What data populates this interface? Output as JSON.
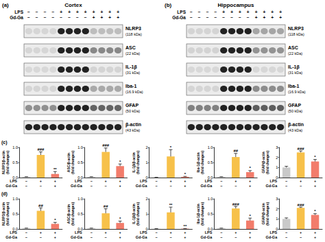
{
  "blots": [
    {
      "label": "(a)",
      "title": "Cortex",
      "treatments": [
        {
          "name": "LPS",
          "signs": [
            "−",
            "−",
            "−",
            "−",
            "+",
            "+",
            "+",
            "+",
            "+",
            "+",
            "+",
            "+"
          ]
        },
        {
          "name": "Gd-Ga",
          "signs": [
            "−",
            "−",
            "−",
            "−",
            "−",
            "−",
            "−",
            "−",
            "+",
            "+",
            "+",
            "+"
          ]
        }
      ],
      "proteins": [
        {
          "name": "NLRP3",
          "size": "(118 kDa)"
        },
        {
          "name": "ASC",
          "size": "(22 kDa)"
        },
        {
          "name": "IL-1β",
          "size": "(31 kDa)"
        },
        {
          "name": "Iba-1",
          "size": "(16.9 kDa)"
        },
        {
          "name": "GFAP",
          "size": "(50 kDa)"
        },
        {
          "name": "β-actin",
          "size": "(43 kDa)"
        }
      ]
    },
    {
      "label": "(b)",
      "title": "Hippocampus",
      "treatments": [
        {
          "name": "LPS",
          "signs": [
            "−",
            "−",
            "−",
            "−",
            "+",
            "+",
            "+",
            "+",
            "+",
            "+",
            "+",
            "+"
          ]
        },
        {
          "name": "Gd-Ga",
          "signs": [
            "−",
            "−",
            "−",
            "−",
            "−",
            "−",
            "−",
            "−",
            "+",
            "+",
            "+",
            "+"
          ]
        }
      ],
      "proteins": [
        {
          "name": "NLRP3",
          "size": "(118 kDa)"
        },
        {
          "name": "ASC",
          "size": "(22 kDa)"
        },
        {
          "name": "IL-1β",
          "size": "(31 kDa)"
        },
        {
          "name": "Iba-1",
          "size": "(16.9 kDa)"
        },
        {
          "name": "GFAP",
          "size": "(50 kDa)"
        },
        {
          "name": "β-actin",
          "size": "(43 kDa)"
        }
      ]
    }
  ],
  "chart_panel_labels": [
    "(c)",
    "(d)"
  ],
  "chart_data": [
    {
      "type": "bar",
      "y_label": "NLRP3/β-actin (fold changes)",
      "categories": [
        "−\n−",
        "+\n−",
        "+\n+"
      ],
      "x_row_labels": [
        "LPS",
        "Gd-Ga"
      ],
      "values": [
        0.02,
        0.75,
        0.12
      ],
      "errors": [
        0.01,
        0.1,
        0.08
      ],
      "significance": [
        null,
        "###",
        "**"
      ],
      "colors": [
        "#c9c9c9",
        "#f7c14a",
        "#f27c6b"
      ],
      "ylim": [
        0,
        1
      ],
      "yticks": [
        {
          "value": 0,
          "label": "0.0"
        },
        {
          "value": 0.5,
          "label": "0.5"
        },
        {
          "value": 1,
          "label": "1.0"
        }
      ]
    },
    {
      "type": "bar",
      "y_label": "ASC/β-actin (fold changes)",
      "categories": [
        "−\n−",
        "+\n−",
        "+\n+"
      ],
      "x_row_labels": [
        "LPS",
        "Gd-Ga"
      ],
      "values": [
        0.02,
        0.85,
        0.38
      ],
      "errors": [
        0.01,
        0.13,
        0.07
      ],
      "significance": [
        null,
        "###",
        "*"
      ],
      "colors": [
        "#c9c9c9",
        "#f7c14a",
        "#f27c6b"
      ],
      "ylim": [
        0,
        1
      ],
      "yticks": [
        {
          "value": 0,
          "label": "0.0"
        },
        {
          "value": 0.5,
          "label": "0.5"
        },
        {
          "value": 1,
          "label": "1.0"
        }
      ]
    },
    {
      "type": "bar",
      "y_label": "IL-1β/β-actin (fold changes)",
      "categories": [
        "−\n−",
        "+\n−",
        "+\n+"
      ],
      "x_row_labels": [
        "LPS",
        "Gd-Ga"
      ],
      "values": [
        0.01,
        1.4,
        0.05
      ],
      "errors": [
        0.01,
        0.45,
        0.03
      ],
      "significance": [
        null,
        "*",
        "*"
      ],
      "colors": [
        "#c9c9c9",
        "#f7c14a",
        "#f27c6b"
      ],
      "ylim": [
        0,
        2
      ],
      "yticks": [
        0,
        1,
        2
      ]
    },
    {
      "type": "bar",
      "y_label": "Iba-1/β-actin (fold changes)",
      "categories": [
        "−\n−",
        "+\n−",
        "+\n+"
      ],
      "x_row_labels": [
        "LPS",
        "Gd-Ga"
      ],
      "values": [
        0.02,
        0.68,
        0.18
      ],
      "errors": [
        0.01,
        0.12,
        0.05
      ],
      "significance": [
        null,
        "##",
        "*"
      ],
      "colors": [
        "#c9c9c9",
        "#f7c14a",
        "#f27c6b"
      ],
      "ylim": [
        0,
        1
      ],
      "yticks": [
        {
          "value": 0,
          "label": "0.0"
        },
        {
          "value": 0.5,
          "label": "0.5"
        },
        {
          "value": 1,
          "label": "1.0"
        }
      ]
    },
    {
      "type": "bar",
      "y_label": "GFAP/β-actin (fold changes)",
      "categories": [
        "−\n−",
        "+\n−",
        "+\n+"
      ],
      "x_row_labels": [
        "LPS",
        "Gd-Ga"
      ],
      "values": [
        1.0,
        2.5,
        1.6
      ],
      "errors": [
        0.12,
        0.15,
        0.2
      ],
      "significance": [
        null,
        "###",
        "*"
      ],
      "colors": [
        "#c9c9c9",
        "#f7c14a",
        "#f27c6b"
      ],
      "ylim": [
        0,
        3
      ],
      "yticks": [
        0,
        1,
        2,
        3
      ]
    },
    {
      "type": "bar",
      "y_label": "NLRP3/β-actin (fold changes)",
      "categories": [
        "−\n−",
        "+\n−",
        "+\n+"
      ],
      "x_row_labels": [
        "LPS",
        "Gd-Ga"
      ],
      "values": [
        0.02,
        0.6,
        0.17
      ],
      "errors": [
        0.01,
        0.1,
        0.05
      ],
      "significance": [
        null,
        "##",
        "*"
      ],
      "colors": [
        "#c9c9c9",
        "#f7c14a",
        "#f27c6b"
      ],
      "ylim": [
        0,
        1
      ],
      "yticks": [
        {
          "value": 0,
          "label": "0.0"
        },
        {
          "value": 0.5,
          "label": "0.5"
        },
        {
          "value": 1,
          "label": "1.0"
        }
      ]
    },
    {
      "type": "bar",
      "y_label": "ASC/β-actin (fold changes)",
      "categories": [
        "−\n−",
        "+\n−",
        "+\n+"
      ],
      "x_row_labels": [
        "LPS",
        "Gd-Ga"
      ],
      "values": [
        0.02,
        0.52,
        0.2
      ],
      "errors": [
        0.01,
        0.15,
        0.06
      ],
      "significance": [
        null,
        "##",
        "*"
      ],
      "colors": [
        "#c9c9c9",
        "#f7c14a",
        "#f27c6b"
      ],
      "ylim": [
        0,
        1
      ],
      "yticks": [
        {
          "value": 0,
          "label": "0.0"
        },
        {
          "value": 0.5,
          "label": "0.5"
        },
        {
          "value": 1,
          "label": "1.0"
        }
      ]
    },
    {
      "type": "bar",
      "y_label": "IL-1β/β-actin (fold changes)",
      "categories": [
        "−\n−",
        "+\n−",
        "+\n+"
      ],
      "x_row_labels": [
        "LPS",
        "Gd-Ga"
      ],
      "values": [
        0.01,
        1.1,
        0.02
      ],
      "errors": [
        0.01,
        0.35,
        0.01
      ],
      "significance": [
        null,
        "**",
        "**"
      ],
      "colors": [
        "#c9c9c9",
        "#f7c14a",
        "#f27c6b"
      ],
      "ylim": [
        0,
        2
      ],
      "yticks": [
        0,
        1,
        2
      ]
    },
    {
      "type": "bar",
      "y_label": "Iba-1/β-actin (fold changes)",
      "categories": [
        "−\n−",
        "+\n−",
        "+\n+"
      ],
      "x_row_labels": [
        "LPS",
        "Gd-Ga"
      ],
      "values": [
        0.02,
        0.68,
        0.28
      ],
      "errors": [
        0.01,
        0.07,
        0.08
      ],
      "significance": [
        null,
        "###",
        "*"
      ],
      "colors": [
        "#c9c9c9",
        "#f7c14a",
        "#f27c6b"
      ],
      "ylim": [
        0,
        1
      ],
      "yticks": [
        {
          "value": 0,
          "label": "0.0"
        },
        {
          "value": 0.5,
          "label": "0.5"
        },
        {
          "value": 1,
          "label": "1.0"
        }
      ]
    },
    {
      "type": "bar",
      "y_label": "GFAP/β-actin (fold changes)",
      "categories": [
        "−\n−",
        "+\n−",
        "+\n+"
      ],
      "x_row_labels": [
        "LPS",
        "Gd-Ga"
      ],
      "values": [
        1.0,
        2.1,
        1.4
      ],
      "errors": [
        0.1,
        0.08,
        0.12
      ],
      "significance": [
        null,
        "###",
        "*"
      ],
      "colors": [
        "#c9c9c9",
        "#f7c14a",
        "#f27c6b"
      ],
      "ylim": [
        0,
        3
      ],
      "yticks": [
        0,
        1,
        2,
        3
      ]
    }
  ]
}
